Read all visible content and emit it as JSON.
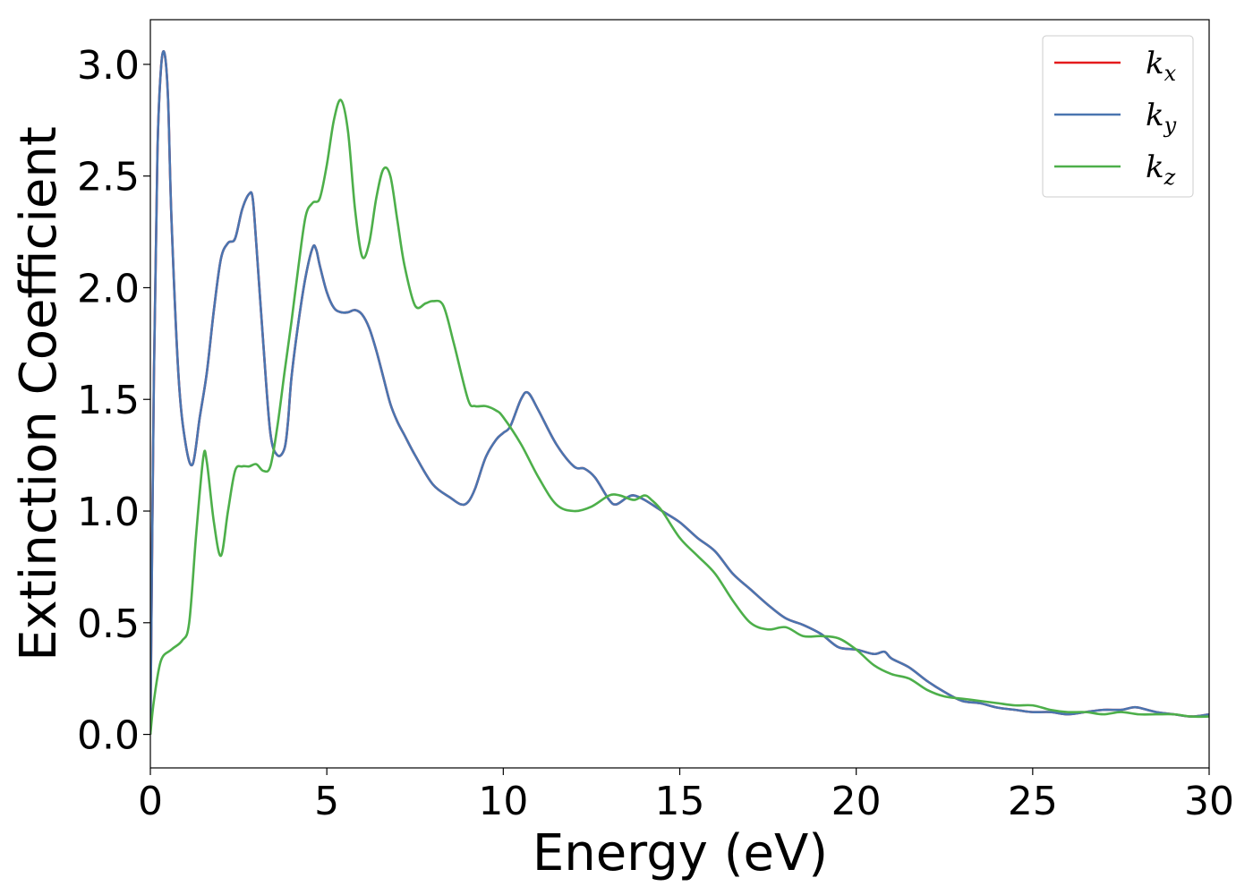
{
  "chart_data": {
    "type": "line",
    "title": "",
    "xlabel": "Energy (eV)",
    "ylabel": "Extinction Coefficient",
    "xlim": [
      0,
      30
    ],
    "ylim": [
      -0.15,
      3.2
    ],
    "x_ticks": [
      "0",
      "5",
      "10",
      "15",
      "20",
      "25",
      "30"
    ],
    "y_ticks": [
      "0.0",
      "0.5",
      "1.0",
      "1.5",
      "2.0",
      "2.5",
      "3.0"
    ],
    "grid": false,
    "legend_position": "top-right",
    "series": [
      {
        "name": "k",
        "subscript": "x",
        "color": "#e41a1c",
        "x": [
          0,
          0.1,
          0.2,
          0.3,
          0.4,
          0.5,
          0.6,
          0.8,
          1.0,
          1.2,
          1.4,
          1.6,
          1.8,
          2.0,
          2.2,
          2.4,
          2.6,
          2.8,
          2.9,
          3.0,
          3.2,
          3.4,
          3.6,
          3.8,
          3.9,
          4.0,
          4.2,
          4.4,
          4.6,
          4.7,
          4.8,
          5.0,
          5.2,
          5.4,
          5.6,
          5.8,
          6.0,
          6.2,
          6.4,
          6.6,
          6.8,
          7.0,
          7.2,
          7.5,
          8.0,
          8.5,
          8.8,
          9.0,
          9.2,
          9.5,
          9.8,
          10.0,
          10.2,
          10.5,
          10.7,
          11.0,
          11.5,
          12.0,
          12.3,
          12.6,
          13.0,
          13.2,
          13.5,
          13.7,
          14.0,
          14.5,
          15.0,
          15.5,
          16.0,
          16.5,
          17.0,
          17.5,
          18.0,
          18.5,
          19.0,
          19.5,
          20.0,
          20.5,
          20.8,
          21.0,
          21.5,
          22.0,
          22.5,
          23.0,
          23.5,
          24.0,
          24.5,
          25.0,
          25.5,
          26.0,
          26.5,
          27.0,
          27.5,
          27.8,
          28.0,
          28.5,
          29.0,
          29.5,
          30.0
        ],
        "values": [
          0,
          1.6,
          2.6,
          2.98,
          3.05,
          2.85,
          2.3,
          1.6,
          1.3,
          1.21,
          1.42,
          1.62,
          1.9,
          2.13,
          2.2,
          2.22,
          2.35,
          2.42,
          2.4,
          2.2,
          1.75,
          1.35,
          1.25,
          1.28,
          1.4,
          1.6,
          1.85,
          2.05,
          2.18,
          2.17,
          2.1,
          1.98,
          1.91,
          1.89,
          1.89,
          1.9,
          1.88,
          1.82,
          1.72,
          1.6,
          1.48,
          1.4,
          1.34,
          1.25,
          1.12,
          1.06,
          1.03,
          1.04,
          1.1,
          1.24,
          1.32,
          1.35,
          1.38,
          1.5,
          1.53,
          1.45,
          1.3,
          1.2,
          1.19,
          1.15,
          1.05,
          1.03,
          1.06,
          1.07,
          1.05,
          1.0,
          0.95,
          0.88,
          0.82,
          0.72,
          0.65,
          0.58,
          0.52,
          0.49,
          0.45,
          0.39,
          0.38,
          0.36,
          0.37,
          0.34,
          0.3,
          0.24,
          0.19,
          0.15,
          0.14,
          0.12,
          0.11,
          0.1,
          0.1,
          0.09,
          0.1,
          0.11,
          0.11,
          0.12,
          0.12,
          0.1,
          0.09,
          0.08,
          0.09
        ]
      },
      {
        "name": "k",
        "subscript": "y",
        "color": "#4a75b0",
        "x": [
          0,
          0.1,
          0.2,
          0.3,
          0.4,
          0.5,
          0.6,
          0.8,
          1.0,
          1.2,
          1.4,
          1.6,
          1.8,
          2.0,
          2.2,
          2.4,
          2.6,
          2.8,
          2.9,
          3.0,
          3.2,
          3.4,
          3.6,
          3.8,
          3.9,
          4.0,
          4.2,
          4.4,
          4.6,
          4.7,
          4.8,
          5.0,
          5.2,
          5.4,
          5.6,
          5.8,
          6.0,
          6.2,
          6.4,
          6.6,
          6.8,
          7.0,
          7.2,
          7.5,
          8.0,
          8.5,
          8.8,
          9.0,
          9.2,
          9.5,
          9.8,
          10.0,
          10.2,
          10.5,
          10.7,
          11.0,
          11.5,
          12.0,
          12.3,
          12.6,
          13.0,
          13.2,
          13.5,
          13.7,
          14.0,
          14.5,
          15.0,
          15.5,
          16.0,
          16.5,
          17.0,
          17.5,
          18.0,
          18.5,
          19.0,
          19.5,
          20.0,
          20.5,
          20.8,
          21.0,
          21.5,
          22.0,
          22.5,
          23.0,
          23.5,
          24.0,
          24.5,
          25.0,
          25.5,
          26.0,
          26.5,
          27.0,
          27.5,
          27.8,
          28.0,
          28.5,
          29.0,
          29.5,
          30.0
        ],
        "values": [
          0,
          1.6,
          2.6,
          2.98,
          3.05,
          2.85,
          2.3,
          1.6,
          1.3,
          1.21,
          1.42,
          1.62,
          1.9,
          2.13,
          2.2,
          2.22,
          2.35,
          2.42,
          2.4,
          2.2,
          1.75,
          1.35,
          1.25,
          1.28,
          1.4,
          1.6,
          1.85,
          2.05,
          2.18,
          2.17,
          2.1,
          1.98,
          1.91,
          1.89,
          1.89,
          1.9,
          1.88,
          1.82,
          1.72,
          1.6,
          1.48,
          1.4,
          1.34,
          1.25,
          1.12,
          1.06,
          1.03,
          1.04,
          1.1,
          1.24,
          1.32,
          1.35,
          1.38,
          1.5,
          1.53,
          1.45,
          1.3,
          1.2,
          1.19,
          1.15,
          1.05,
          1.03,
          1.06,
          1.07,
          1.05,
          1.0,
          0.95,
          0.88,
          0.82,
          0.72,
          0.65,
          0.58,
          0.52,
          0.49,
          0.45,
          0.39,
          0.38,
          0.36,
          0.37,
          0.34,
          0.3,
          0.24,
          0.19,
          0.15,
          0.14,
          0.12,
          0.11,
          0.1,
          0.1,
          0.09,
          0.1,
          0.11,
          0.11,
          0.12,
          0.12,
          0.1,
          0.09,
          0.08,
          0.09
        ]
      },
      {
        "name": "k",
        "subscript": "z",
        "color": "#4daf4a",
        "x": [
          0,
          0.1,
          0.3,
          0.6,
          0.9,
          1.1,
          1.3,
          1.5,
          1.6,
          1.8,
          2.0,
          2.2,
          2.4,
          2.6,
          2.8,
          3.0,
          3.2,
          3.4,
          3.6,
          3.8,
          4.0,
          4.2,
          4.4,
          4.6,
          4.8,
          5.0,
          5.2,
          5.4,
          5.6,
          5.8,
          6.0,
          6.2,
          6.4,
          6.6,
          6.8,
          7.0,
          7.2,
          7.5,
          7.8,
          8.0,
          8.3,
          8.6,
          9.0,
          9.2,
          9.5,
          9.8,
          10.0,
          10.5,
          11.0,
          11.5,
          12.0,
          12.5,
          13.0,
          13.3,
          13.7,
          14.0,
          14.2,
          14.5,
          15.0,
          15.5,
          16.0,
          16.5,
          17.0,
          17.5,
          18.0,
          18.5,
          19.0,
          19.5,
          20.0,
          20.5,
          21.0,
          21.5,
          22.0,
          22.5,
          23.0,
          23.5,
          24.0,
          24.5,
          25.0,
          25.5,
          26.0,
          26.5,
          27.0,
          27.5,
          28.0,
          28.5,
          29.0,
          29.5,
          30.0
        ],
        "values": [
          0,
          0.15,
          0.33,
          0.38,
          0.42,
          0.5,
          0.9,
          1.24,
          1.22,
          0.95,
          0.8,
          1.0,
          1.18,
          1.2,
          1.2,
          1.21,
          1.18,
          1.2,
          1.38,
          1.62,
          1.85,
          2.1,
          2.32,
          2.38,
          2.4,
          2.55,
          2.75,
          2.84,
          2.7,
          2.35,
          2.14,
          2.2,
          2.4,
          2.53,
          2.5,
          2.3,
          2.1,
          1.92,
          1.93,
          1.94,
          1.92,
          1.75,
          1.5,
          1.47,
          1.47,
          1.45,
          1.42,
          1.3,
          1.15,
          1.03,
          1.0,
          1.02,
          1.07,
          1.07,
          1.05,
          1.07,
          1.05,
          1.0,
          0.88,
          0.8,
          0.72,
          0.6,
          0.5,
          0.47,
          0.48,
          0.44,
          0.44,
          0.43,
          0.38,
          0.31,
          0.27,
          0.25,
          0.2,
          0.17,
          0.16,
          0.15,
          0.14,
          0.13,
          0.13,
          0.11,
          0.1,
          0.1,
          0.09,
          0.1,
          0.09,
          0.09,
          0.09,
          0.08,
          0.08
        ]
      }
    ]
  }
}
